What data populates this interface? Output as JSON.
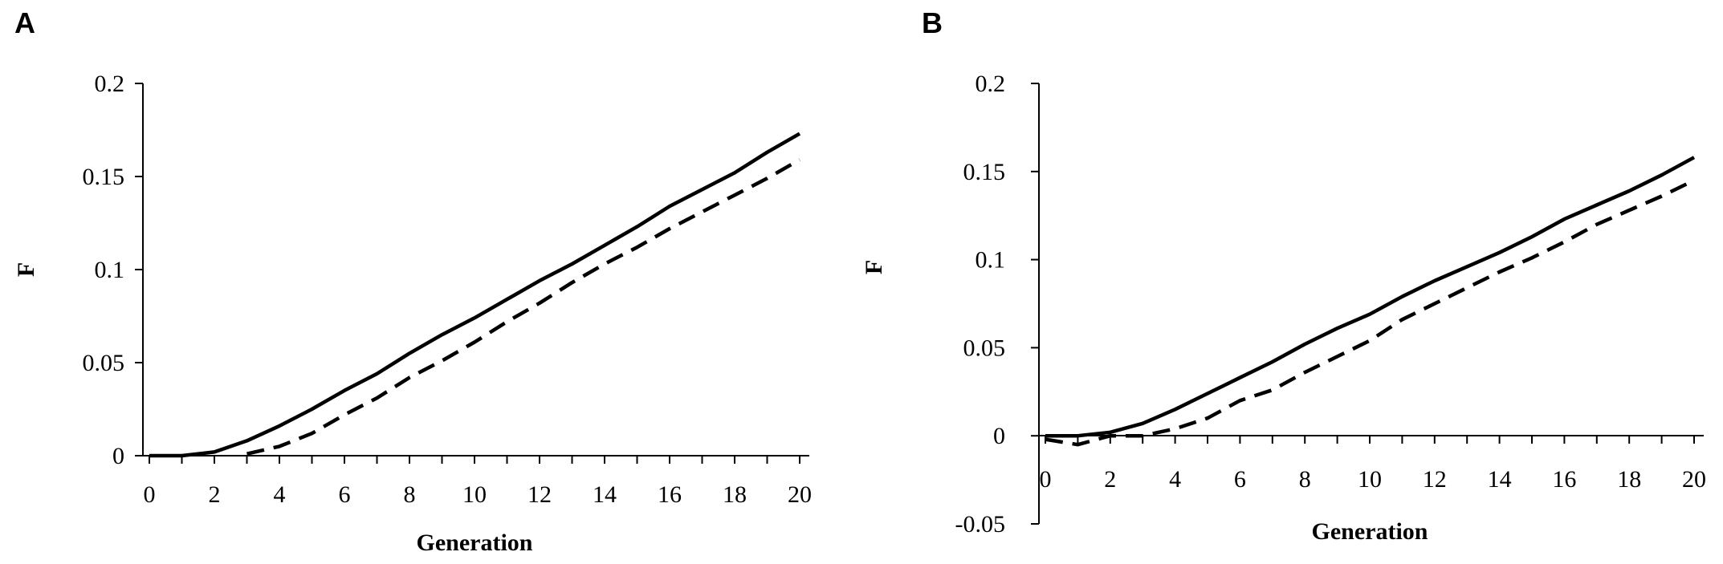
{
  "panels": [
    {
      "letter": "A"
    },
    {
      "letter": "B"
    }
  ],
  "chart_data": [
    {
      "type": "line",
      "title": "",
      "xlabel": "Generation",
      "ylabel": "F",
      "xlim": [
        0,
        20
      ],
      "ylim": [
        0,
        0.2
      ],
      "x_ticks": [
        "0",
        "2",
        "4",
        "6",
        "8",
        "10",
        "12",
        "14",
        "16",
        "18",
        "20"
      ],
      "y_ticks": [
        "0",
        "0.05",
        "0.1",
        "0.15",
        "0.2"
      ],
      "grid": false,
      "legend": "none",
      "x": [
        0,
        1,
        2,
        3,
        4,
        5,
        6,
        7,
        8,
        9,
        10,
        11,
        12,
        13,
        14,
        15,
        16,
        17,
        18,
        19,
        20
      ],
      "series": [
        {
          "style": "solid",
          "color": "#000000",
          "values": [
            0,
            0,
            0.002,
            0.008,
            0.016,
            0.025,
            0.035,
            0.044,
            0.055,
            0.065,
            0.074,
            0.084,
            0.094,
            0.103,
            0.113,
            0.123,
            0.134,
            0.143,
            0.152,
            0.163,
            0.173
          ]
        },
        {
          "style": "dashed",
          "color": "#000000",
          "values": [
            null,
            null,
            null,
            0.001,
            0.005,
            0.012,
            0.022,
            0.031,
            0.042,
            0.051,
            0.061,
            0.072,
            0.082,
            0.093,
            0.103,
            0.112,
            0.122,
            0.131,
            0.14,
            0.149,
            0.159
          ]
        }
      ]
    },
    {
      "type": "line",
      "title": "",
      "xlabel": "Generation",
      "ylabel": "F",
      "xlim": [
        0,
        20
      ],
      "ylim": [
        -0.05,
        0.2
      ],
      "x_ticks": [
        "0",
        "2",
        "4",
        "6",
        "8",
        "10",
        "12",
        "14",
        "16",
        "18",
        "20"
      ],
      "y_ticks": [
        "-0.05",
        "0",
        "0.05",
        "0.1",
        "0.15",
        "0.2"
      ],
      "grid": false,
      "legend": "none",
      "x": [
        0,
        1,
        2,
        3,
        4,
        5,
        6,
        7,
        8,
        9,
        10,
        11,
        12,
        13,
        14,
        15,
        16,
        17,
        18,
        19,
        20
      ],
      "series": [
        {
          "style": "solid",
          "color": "#000000",
          "values": [
            0,
            0,
            0.002,
            0.007,
            0.015,
            0.024,
            0.033,
            0.042,
            0.052,
            0.061,
            0.069,
            0.079,
            0.088,
            0.096,
            0.104,
            0.113,
            0.123,
            0.131,
            0.139,
            0.148,
            0.158
          ]
        },
        {
          "style": "dashed",
          "color": "#000000",
          "values": [
            -0.002,
            -0.005,
            0,
            0,
            0.004,
            0.01,
            0.02,
            0.026,
            0.036,
            0.045,
            0.054,
            0.066,
            0.075,
            0.084,
            0.093,
            0.101,
            0.11,
            0.12,
            0.128,
            0.136,
            0.145
          ]
        }
      ]
    }
  ]
}
